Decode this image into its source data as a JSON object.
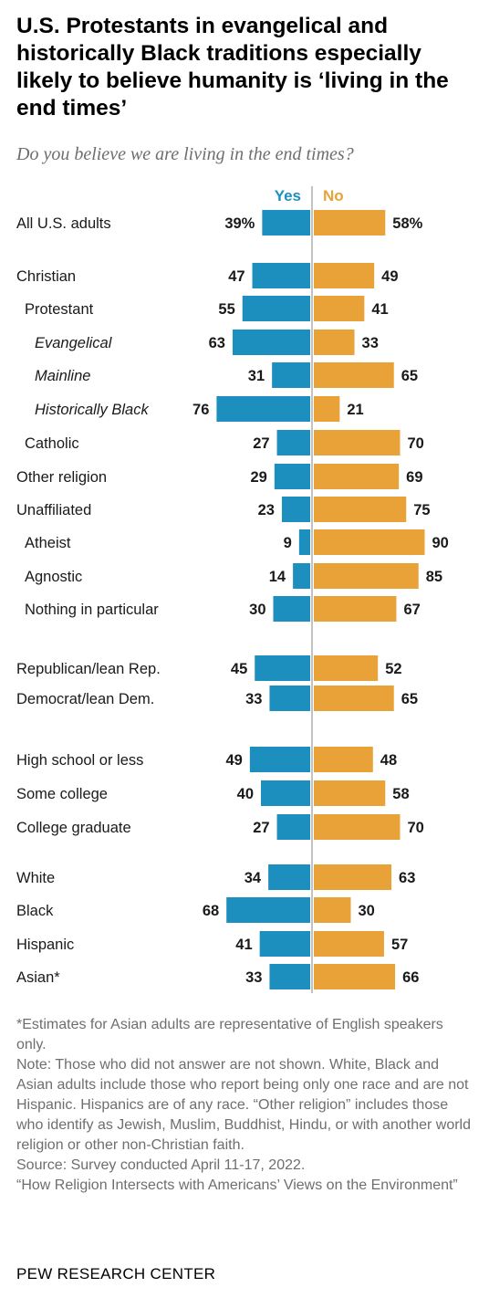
{
  "title": "U.S. Protestants in evangelical and historically Black traditions especially likely to believe humanity is ‘living in the end times’",
  "subtitle": "Do you believe we are living in the end times?",
  "colors": {
    "yes": "#1d8fbf",
    "no": "#e9a237",
    "center_line": "#9a9a9a"
  },
  "chart_data": {
    "type": "bar",
    "orientation": "diverging-horizontal",
    "question": "Do you believe we are living in the end times?",
    "value_unit": "%",
    "xlim": [
      0,
      100
    ],
    "series": [
      {
        "name": "Yes",
        "color": "#1d8fbf",
        "direction": "left"
      },
      {
        "name": "No",
        "color": "#e9a237",
        "direction": "right"
      }
    ],
    "rows": [
      {
        "label": "All U.S. adults",
        "indent": 0,
        "italic": false,
        "yes": 39,
        "no": 58,
        "yes_text": "39%",
        "no_text": "58%"
      },
      {
        "label": "Christian",
        "indent": 0,
        "italic": false,
        "yes": 47,
        "no": 49,
        "yes_text": "47",
        "no_text": "49"
      },
      {
        "label": "Protestant",
        "indent": 1,
        "italic": false,
        "yes": 55,
        "no": 41,
        "yes_text": "55",
        "no_text": "41"
      },
      {
        "label": "Evangelical",
        "indent": 2,
        "italic": true,
        "yes": 63,
        "no": 33,
        "yes_text": "63",
        "no_text": "33"
      },
      {
        "label": "Mainline",
        "indent": 2,
        "italic": true,
        "yes": 31,
        "no": 65,
        "yes_text": "31",
        "no_text": "65"
      },
      {
        "label": "Historically Black",
        "indent": 2,
        "italic": true,
        "yes": 76,
        "no": 21,
        "yes_text": "76",
        "no_text": "21"
      },
      {
        "label": "Catholic",
        "indent": 1,
        "italic": false,
        "yes": 27,
        "no": 70,
        "yes_text": "27",
        "no_text": "70"
      },
      {
        "label": "Other religion",
        "indent": 0,
        "italic": false,
        "yes": 29,
        "no": 69,
        "yes_text": "29",
        "no_text": "69"
      },
      {
        "label": "Unaffiliated",
        "indent": 0,
        "italic": false,
        "yes": 23,
        "no": 75,
        "yes_text": "23",
        "no_text": "75"
      },
      {
        "label": "Atheist",
        "indent": 1,
        "italic": false,
        "yes": 9,
        "no": 90,
        "yes_text": "9",
        "no_text": "90"
      },
      {
        "label": "Agnostic",
        "indent": 1,
        "italic": false,
        "yes": 14,
        "no": 85,
        "yes_text": "14",
        "no_text": "85"
      },
      {
        "label": "Nothing in particular",
        "indent": 1,
        "italic": false,
        "yes": 30,
        "no": 67,
        "yes_text": "30",
        "no_text": "67"
      },
      {
        "label": "Republican/lean Rep.",
        "indent": 0,
        "italic": false,
        "yes": 45,
        "no": 52,
        "yes_text": "45",
        "no_text": "52"
      },
      {
        "label": "Democrat/lean Dem.",
        "indent": 0,
        "italic": false,
        "yes": 33,
        "no": 65,
        "yes_text": "33",
        "no_text": "65"
      },
      {
        "label": "High school or less",
        "indent": 0,
        "italic": false,
        "yes": 49,
        "no": 48,
        "yes_text": "49",
        "no_text": "48"
      },
      {
        "label": "Some college",
        "indent": 0,
        "italic": false,
        "yes": 40,
        "no": 58,
        "yes_text": "40",
        "no_text": "58"
      },
      {
        "label": "College graduate",
        "indent": 0,
        "italic": false,
        "yes": 27,
        "no": 70,
        "yes_text": "27",
        "no_text": "70"
      },
      {
        "label": "White",
        "indent": 0,
        "italic": false,
        "yes": 34,
        "no": 63,
        "yes_text": "34",
        "no_text": "63"
      },
      {
        "label": "Black",
        "indent": 0,
        "italic": false,
        "yes": 68,
        "no": 30,
        "yes_text": "68",
        "no_text": "30"
      },
      {
        "label": "Hispanic",
        "indent": 0,
        "italic": false,
        "yes": 41,
        "no": 57,
        "yes_text": "41",
        "no_text": "57"
      },
      {
        "label": "Asian*",
        "indent": 0,
        "italic": false,
        "yes": 33,
        "no": 66,
        "yes_text": "33",
        "no_text": "66"
      }
    ]
  },
  "notes": {
    "asian_footnote": "*Estimates for Asian adults are representative of English speakers only.",
    "note": "Note: Those who did not answer are not shown. White, Black and Asian adults include those who report being only one race and are not Hispanic. Hispanics are of any race. “Other religion” includes those who identify as Jewish, Muslim, Buddhist, Hindu, or with another world religion or other non-Christian faith.",
    "source": "Source: Survey conducted April 11-17, 2022.",
    "report": "“How Religion Intersects with Americans’ Views on the Environment”"
  },
  "brand": "PEW RESEARCH CENTER"
}
